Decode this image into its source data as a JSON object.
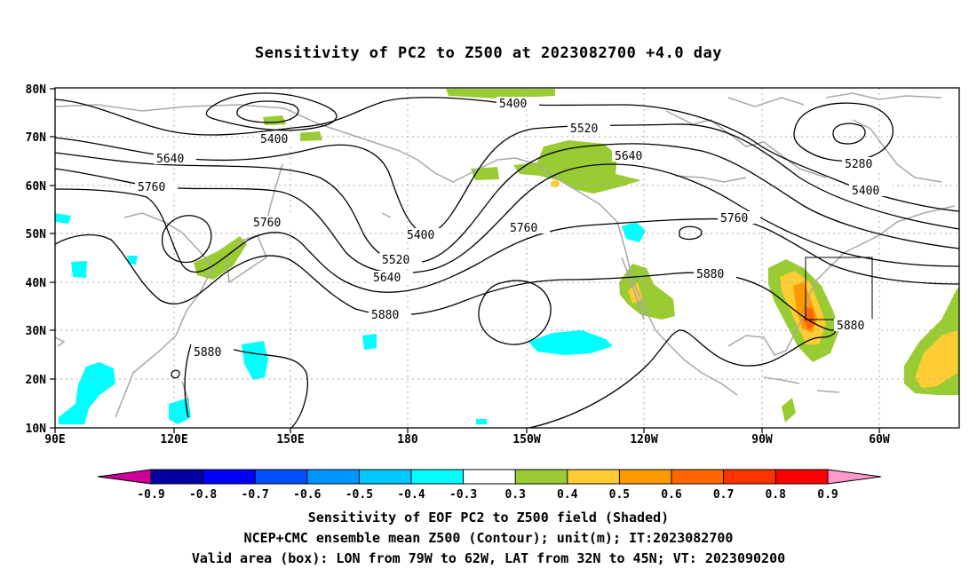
{
  "title": "Sensitivity of PC2 to Z500 at 2023082700 +4.0 day",
  "lat_labels": [
    "80N",
    "70N",
    "60N",
    "50N",
    "40N",
    "30N",
    "20N",
    "10N"
  ],
  "lon_labels": [
    "90E",
    "120E",
    "150E",
    "180",
    "150W",
    "120W",
    "90W",
    "60W"
  ],
  "contour_labels": {
    "c5400_a": "5400",
    "c5400_b": "5400",
    "c5400_c": "5400",
    "c5400_d": "5400",
    "c5520_a": "5520",
    "c5520_b": "5520",
    "c5640_a": "5640",
    "c5640_b": "5640",
    "c5640_c": "5640",
    "c5760_a": "5760",
    "c5760_b": "5760",
    "c5760_c": "5760",
    "c5760_d": "5760",
    "c5880_a": "5880",
    "c5880_b": "5880",
    "c5880_c": "5880",
    "c5880_d": "5880",
    "c5280": "5280"
  },
  "colorbar": {
    "labels": [
      "-0.9",
      "-0.8",
      "-0.7",
      "-0.6",
      "-0.5",
      "-0.4",
      "-0.3",
      "0.3",
      "0.4",
      "0.5",
      "0.6",
      "0.7",
      "0.8",
      "0.9"
    ],
    "colors": [
      "#0000a0",
      "#0000ff",
      "#0050ff",
      "#0096ff",
      "#00c8ff",
      "#00ffff",
      "#ffffff",
      "#99cc33",
      "#ffcc33",
      "#ff9900",
      "#ff6600",
      "#ff3300",
      "#ff0000"
    ],
    "low_color": "#cc0099",
    "high_color": "#ff99cc"
  },
  "caption": {
    "line1": "Sensitivity of EOF PC2 to Z500 field (Shaded)",
    "line2": "NCEP+CMC ensemble mean Z500 (Contour); unit(m); IT:2023082700",
    "line3": "Valid area (box): LON from 79W to 62W, LAT from 32N to 45N; VT: 2023090200"
  }
}
